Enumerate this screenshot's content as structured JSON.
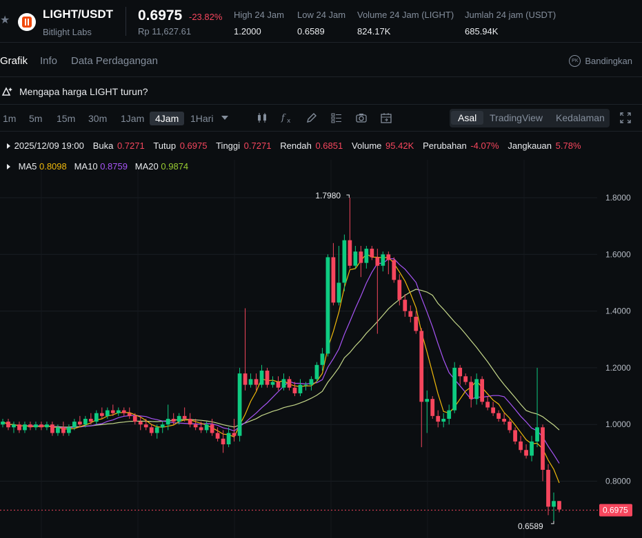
{
  "header": {
    "pair": "LIGHT/USDT",
    "sub": "Bitlight Labs",
    "price": "0.6975",
    "change": "-23.82%",
    "price_rp": "Rp 11,627.61",
    "stats": [
      {
        "label": "High 24 Jam",
        "value": "1.2000"
      },
      {
        "label": "Low 24 Jam",
        "value": "0.6589"
      },
      {
        "label": "Volume 24 Jam (LIGHT)",
        "value": "824.17K"
      },
      {
        "label": "Jumlah 24 jam (USDT)",
        "value": "685.94K"
      }
    ]
  },
  "tabs": [
    "Grafik",
    "Info",
    "Data Perdagangan"
  ],
  "compare": {
    "icon_text": "PK",
    "label": "Bandingkan"
  },
  "why_text": "Mengapa harga LIGHT turun?",
  "toolbar": {
    "timeframes": [
      "1m",
      "5m",
      "15m",
      "30m",
      "1Jam",
      "4Jam",
      "1Hari"
    ],
    "views": [
      "Asal",
      "TradingView",
      "Kedalaman"
    ]
  },
  "ohlc": {
    "date": "2025/12/09 19:00",
    "open_label": "Buka",
    "open": "0.7271",
    "close_label": "Tutup",
    "close": "0.6975",
    "high_label": "Tinggi",
    "high": "0.7271",
    "low_label": "Rendah",
    "low": "0.6851",
    "volume_label": "Volume",
    "volume": "95.42K",
    "change_label": "Perubahan",
    "change": "-4.07%",
    "range_label": "Jangkauan",
    "range": "5.78%"
  },
  "ma": {
    "ma5_label": "MA5",
    "ma5": "0.8098",
    "ma10_label": "MA10",
    "ma10": "0.8759",
    "ma20_label": "MA20",
    "ma20": "0.9874"
  },
  "colors": {
    "up": "#0ecb81",
    "down": "#f6465d",
    "ma5": "#f0b90b",
    "ma10": "#a855f7",
    "ma20": "#c5d88a"
  },
  "chart_data": {
    "type": "candlestick",
    "y_ticks": [
      "1.8000",
      "1.6000",
      "1.4000",
      "1.2000",
      "1.0000",
      "0.8000"
    ],
    "ylim": [
      0.64,
      1.86
    ],
    "last_price_label": "0.6975",
    "max_label": "1.7980",
    "min_label": "0.6589",
    "candles": [
      [
        1.0,
        1.02,
        0.99,
        1.01
      ],
      [
        1.01,
        1.02,
        0.98,
        0.99
      ],
      [
        0.99,
        1.01,
        0.97,
        1.0
      ],
      [
        1.0,
        1.01,
        0.97,
        0.98
      ],
      [
        0.98,
        1.01,
        0.97,
        1.0
      ],
      [
        1.0,
        1.01,
        0.98,
        0.99
      ],
      [
        0.99,
        1.01,
        0.98,
        1.0
      ],
      [
        1.0,
        1.01,
        0.98,
        0.99
      ],
      [
        0.99,
        1.01,
        0.98,
        1.0
      ],
      [
        1.0,
        1.01,
        0.96,
        0.97
      ],
      [
        0.97,
        1.0,
        0.96,
        0.99
      ],
      [
        0.99,
        1.01,
        0.96,
        0.97
      ],
      [
        0.97,
        1.0,
        0.96,
        0.99
      ],
      [
        0.99,
        1.02,
        0.98,
        1.01
      ],
      [
        1.01,
        1.03,
        0.99,
        1.0
      ],
      [
        1.0,
        1.03,
        0.99,
        1.02
      ],
      [
        1.02,
        1.04,
        1.0,
        1.01
      ],
      [
        1.01,
        1.05,
        1.0,
        1.04
      ],
      [
        1.04,
        1.06,
        1.02,
        1.03
      ],
      [
        1.03,
        1.06,
        1.02,
        1.05
      ],
      [
        1.05,
        1.07,
        1.03,
        1.04
      ],
      [
        1.04,
        1.06,
        1.03,
        1.05
      ],
      [
        1.05,
        1.06,
        1.03,
        1.04
      ],
      [
        1.04,
        1.06,
        1.02,
        1.03
      ],
      [
        1.03,
        1.04,
        1.0,
        1.01
      ],
      [
        1.01,
        1.03,
        0.98,
        1.0
      ],
      [
        1.0,
        1.02,
        0.98,
        0.99
      ],
      [
        0.99,
        1.0,
        0.96,
        0.97
      ],
      [
        0.97,
        1.0,
        0.95,
        0.99
      ],
      [
        0.99,
        1.01,
        0.97,
        1.0
      ],
      [
        1.0,
        1.07,
        0.98,
        1.02
      ],
      [
        1.02,
        1.04,
        1.0,
        1.01
      ],
      [
        1.01,
        1.04,
        1.0,
        1.03
      ],
      [
        1.03,
        1.06,
        1.01,
        1.02
      ],
      [
        1.02,
        1.04,
        0.99,
        1.0
      ],
      [
        1.0,
        1.02,
        0.98,
        0.99
      ],
      [
        0.99,
        1.01,
        0.97,
        0.98
      ],
      [
        0.98,
        1.01,
        0.97,
        1.0
      ],
      [
        1.0,
        1.02,
        0.96,
        0.97
      ],
      [
        0.97,
        0.99,
        0.94,
        0.95
      ],
      [
        0.95,
        0.98,
        0.9,
        0.93
      ],
      [
        0.93,
        0.99,
        0.92,
        0.97
      ],
      [
        0.97,
        1.02,
        0.94,
        0.96
      ],
      [
        0.96,
        1.2,
        0.94,
        1.18
      ],
      [
        1.18,
        1.41,
        1.12,
        1.14
      ],
      [
        1.14,
        1.18,
        1.13,
        1.16
      ],
      [
        1.16,
        1.18,
        1.12,
        1.14
      ],
      [
        1.14,
        1.21,
        1.13,
        1.19
      ],
      [
        1.19,
        1.2,
        1.13,
        1.14
      ],
      [
        1.14,
        1.17,
        1.13,
        1.15
      ],
      [
        1.15,
        1.17,
        1.12,
        1.13
      ],
      [
        1.13,
        1.18,
        1.12,
        1.16
      ],
      [
        1.16,
        1.17,
        1.12,
        1.13
      ],
      [
        1.13,
        1.15,
        1.1,
        1.11
      ],
      [
        1.11,
        1.16,
        1.1,
        1.14
      ],
      [
        1.14,
        1.15,
        1.12,
        1.14
      ],
      [
        1.14,
        1.17,
        1.12,
        1.16
      ],
      [
        1.16,
        1.22,
        1.15,
        1.21
      ],
      [
        1.21,
        1.27,
        1.19,
        1.25
      ],
      [
        1.25,
        1.6,
        1.24,
        1.59
      ],
      [
        1.59,
        1.64,
        1.42,
        1.43
      ],
      [
        1.43,
        1.63,
        1.42,
        1.5
      ],
      [
        1.5,
        1.67,
        1.47,
        1.65
      ],
      [
        1.65,
        1.8,
        1.55,
        1.56
      ],
      [
        1.56,
        1.63,
        1.55,
        1.61
      ],
      [
        1.61,
        1.63,
        1.52,
        1.57
      ],
      [
        1.57,
        1.63,
        1.55,
        1.62
      ],
      [
        1.62,
        1.63,
        1.58,
        1.59
      ],
      [
        1.59,
        1.62,
        1.32,
        1.56
      ],
      [
        1.56,
        1.61,
        1.54,
        1.6
      ],
      [
        1.6,
        1.61,
        1.53,
        1.58
      ],
      [
        1.58,
        1.59,
        1.5,
        1.51
      ],
      [
        1.51,
        1.53,
        1.42,
        1.44
      ],
      [
        1.44,
        1.46,
        1.38,
        1.4
      ],
      [
        1.4,
        1.42,
        1.36,
        1.38
      ],
      [
        1.38,
        1.4,
        1.32,
        1.33
      ],
      [
        1.33,
        1.34,
        0.92,
        1.08
      ],
      [
        1.08,
        1.12,
        0.97,
        1.09
      ],
      [
        1.09,
        1.1,
        1.02,
        1.03
      ],
      [
        1.03,
        1.05,
        0.99,
        1.01
      ],
      [
        1.01,
        1.04,
        0.99,
        1.02
      ],
      [
        1.02,
        1.07,
        1.0,
        1.05
      ],
      [
        1.05,
        1.22,
        1.04,
        1.2
      ],
      [
        1.2,
        1.21,
        1.14,
        1.17
      ],
      [
        1.17,
        1.18,
        1.14,
        1.15
      ],
      [
        1.15,
        1.17,
        1.06,
        1.09
      ],
      [
        1.09,
        1.18,
        1.07,
        1.16
      ],
      [
        1.16,
        1.17,
        1.07,
        1.08
      ],
      [
        1.08,
        1.1,
        1.05,
        1.06
      ],
      [
        1.06,
        1.08,
        1.03,
        1.04
      ],
      [
        1.04,
        1.05,
        1.01,
        1.02
      ],
      [
        1.02,
        1.04,
        1.0,
        1.01
      ],
      [
        1.01,
        1.02,
        0.97,
        0.98
      ],
      [
        0.98,
        0.99,
        0.93,
        0.94
      ],
      [
        0.94,
        0.96,
        0.9,
        0.91
      ],
      [
        0.91,
        0.93,
        0.88,
        0.89
      ],
      [
        0.89,
        0.96,
        0.87,
        0.94
      ],
      [
        0.94,
        1.2,
        0.92,
        0.99
      ],
      [
        0.99,
        1.0,
        0.8,
        0.84
      ],
      [
        0.84,
        0.86,
        0.68,
        0.71
      ],
      [
        0.71,
        0.76,
        0.66,
        0.73
      ],
      [
        0.73,
        0.73,
        0.69,
        0.7
      ]
    ]
  }
}
